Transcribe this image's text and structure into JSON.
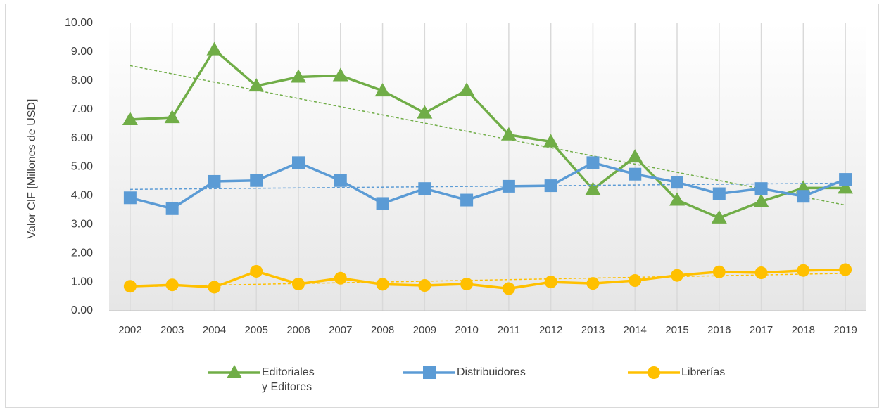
{
  "chart_data": {
    "type": "line",
    "y_label": "Valor CIF [Millones de USD]",
    "categories": [
      "2002",
      "2003",
      "2004",
      "2005",
      "2006",
      "2007",
      "2008",
      "2009",
      "2010",
      "2011",
      "2012",
      "2013",
      "2014",
      "2015",
      "2016",
      "2017",
      "2018",
      "2019"
    ],
    "series": [
      {
        "name": "Editoriales\ny Editores",
        "color": "#70ad47",
        "marker": "triangle",
        "values": [
          6.65,
          6.72,
          9.08,
          7.82,
          8.13,
          8.18,
          7.65,
          6.88,
          7.67,
          6.12,
          5.88,
          4.22,
          5.35,
          3.85,
          3.23,
          3.8,
          4.27,
          4.27
        ]
      },
      {
        "name": "Distribuidores",
        "color": "#5b9bd5",
        "marker": "square",
        "values": [
          3.93,
          3.55,
          4.5,
          4.53,
          5.15,
          4.53,
          3.73,
          4.25,
          3.85,
          4.33,
          4.35,
          5.15,
          4.75,
          4.47,
          4.07,
          4.25,
          3.98,
          4.57
        ]
      },
      {
        "name": "Librerías",
        "color": "#ffc000",
        "marker": "circle",
        "values": [
          0.85,
          0.9,
          0.82,
          1.37,
          0.93,
          1.13,
          0.92,
          0.88,
          0.93,
          0.77,
          1.0,
          0.95,
          1.05,
          1.23,
          1.35,
          1.32,
          1.4,
          1.43
        ]
      }
    ],
    "ylim": [
      0,
      10
    ],
    "yticks": [
      {
        "value": 0,
        "label": "0.00"
      },
      {
        "value": 1,
        "label": "1.00"
      },
      {
        "value": 2,
        "label": "2.00"
      },
      {
        "value": 3,
        "label": "3.00"
      },
      {
        "value": 4,
        "label": "4.00"
      },
      {
        "value": 5,
        "label": "5.00"
      },
      {
        "value": 6,
        "label": "6.00"
      },
      {
        "value": 7,
        "label": "7.00"
      },
      {
        "value": 8,
        "label": "8.00"
      },
      {
        "value": 9,
        "label": "9.00"
      },
      {
        "value": 10,
        "label": "10.00"
      }
    ],
    "trendline": true,
    "grid": "x",
    "legend": "bottom"
  }
}
